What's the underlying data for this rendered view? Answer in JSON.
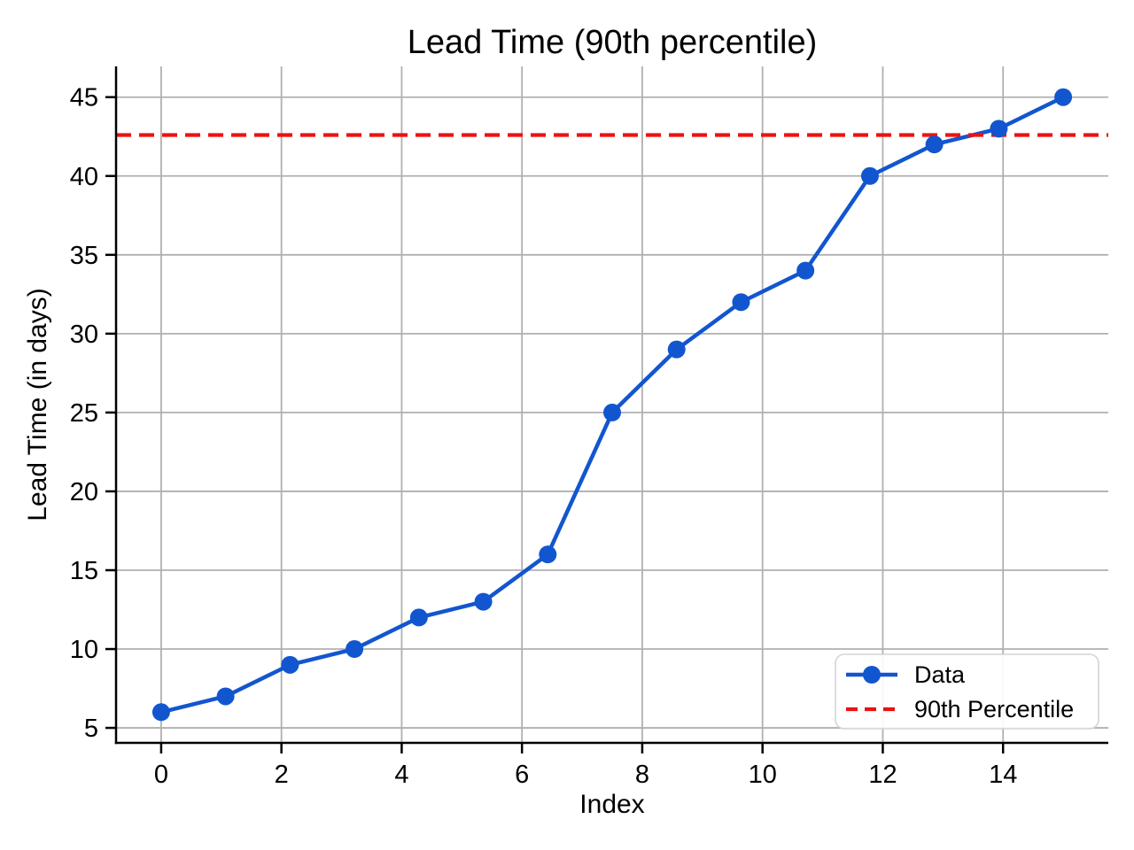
{
  "chart_data": {
    "type": "line",
    "title": "Lead Time (90th percentile)",
    "xlabel": "Index",
    "ylabel": "Lead Time (in days)",
    "x": [
      0,
      1.071,
      2.143,
      3.214,
      4.286,
      5.357,
      6.429,
      7.5,
      8.571,
      9.643,
      10.714,
      11.786,
      12.857,
      13.929,
      15
    ],
    "series": [
      {
        "name": "Data",
        "color": "#1256cf",
        "marker": "circle",
        "values": [
          6,
          7,
          9,
          10,
          12,
          13,
          16,
          25,
          29,
          32,
          34,
          40,
          42,
          43,
          45
        ]
      }
    ],
    "reference_lines": [
      {
        "name": "90th Percentile",
        "value": 42.6,
        "color": "#ee1111",
        "style": "dashed"
      }
    ],
    "xlim": [
      -0.75,
      15.75
    ],
    "ylim": [
      4.05,
      46.95
    ],
    "x_ticks": [
      0,
      2,
      4,
      6,
      8,
      10,
      12,
      14
    ],
    "y_ticks": [
      5,
      10,
      15,
      20,
      25,
      30,
      35,
      40,
      45
    ],
    "grid": true,
    "grid_color": "#b0b0b0",
    "axis_color": "#000000",
    "legend": {
      "position": "lower right",
      "entries": [
        "Data",
        "90th Percentile"
      ]
    }
  }
}
